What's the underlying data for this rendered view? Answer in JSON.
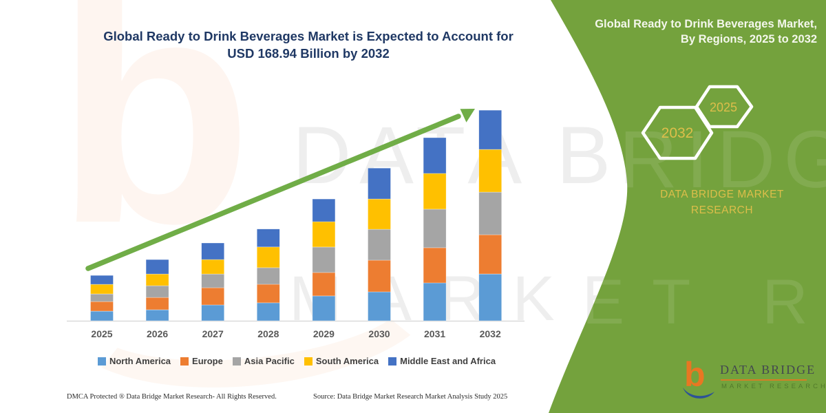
{
  "left_panel": {
    "title_line1": "Global Ready to Drink Beverages Market is Expected to Account for",
    "title_line2": "USD 168.94 Billion by 2032"
  },
  "chart_data": {
    "type": "bar",
    "stacked": true,
    "title": "Global Ready to Drink Beverages Market is Expected to Account for USD 168.94 Billion by 2032",
    "xlabel": "",
    "ylabel": "",
    "unit": "USD Billion (estimated from bar heights; axis unlabeled)",
    "axes_labeled": false,
    "grid": false,
    "legend_position": "bottom",
    "trend_arrow": true,
    "categories": [
      "2025",
      "2026",
      "2027",
      "2028",
      "2029",
      "2030",
      "2031",
      "2032"
    ],
    "series": [
      {
        "name": "North America",
        "color": "#5B9BD5",
        "values": [
          7.7,
          8.8,
          12.7,
          14.4,
          19.9,
          23.2,
          30.4,
          37.5
        ]
      },
      {
        "name": "Europe",
        "color": "#ED7D31",
        "values": [
          7.7,
          9.9,
          13.8,
          14.9,
          18.8,
          25.4,
          28.2,
          31.5
        ]
      },
      {
        "name": "Asia Pacific",
        "color": "#A5A5A5",
        "values": [
          6.1,
          9.4,
          11.0,
          13.3,
          20.4,
          24.8,
          30.9,
          34.2
        ]
      },
      {
        "name": "South America",
        "color": "#FFC000",
        "values": [
          7.7,
          9.4,
          11.6,
          16.6,
          20.4,
          24.3,
          28.7,
          34.2
        ]
      },
      {
        "name": "Middle East and Africa",
        "color": "#4472C4",
        "values": [
          7.2,
          11.6,
          13.3,
          14.4,
          18.2,
          24.8,
          28.7,
          31.5
        ]
      }
    ],
    "totals_estimated": [
      36.4,
      49.1,
      62.4,
      73.6,
      97.7,
      122.5,
      146.9,
      168.94
    ],
    "arrow_color": "#70AD47"
  },
  "right_panel": {
    "title": "Global Ready to Drink Beverages Market, By Regions, 2025 to 2032",
    "panel_color": "#74A23D",
    "accent_text_color": "#DDBE4A",
    "hexagons": [
      {
        "label": "2032"
      },
      {
        "label": "2025"
      }
    ],
    "brand_line1": "DATA BRIDGE MARKET",
    "brand_line2": "RESEARCH"
  },
  "footer": {
    "dmca": "DMCA Protected ® Data Bridge Market Research-  All Rights Reserved.",
    "source": "Source: Data Bridge Market Research  Market Analysis Study 2025"
  },
  "logo": {
    "name": "DATA BRIDGE",
    "subtext": "MARKET RESEARCH",
    "mark": "dbmr-b-icon",
    "orange": "#E87722",
    "blue": "#2D5296"
  },
  "watermark": {
    "line1": "DATA BRIDGE",
    "line2": "MARKET RESEARCH",
    "logo_glyph": "b"
  }
}
